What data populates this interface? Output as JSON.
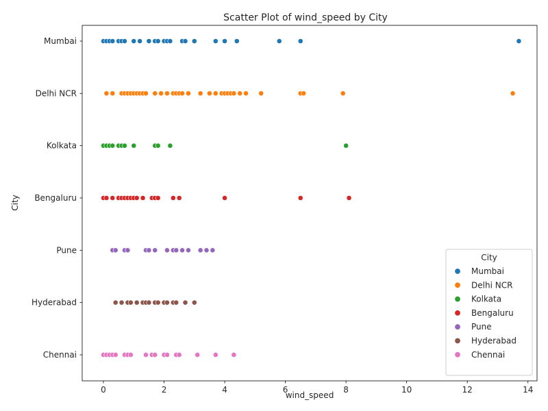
{
  "chart_data": {
    "type": "scatter",
    "title": "Scatter Plot of wind_speed by City",
    "xlabel": "wind_speed",
    "ylabel": "City",
    "xlim": [
      -0.7,
      14.3
    ],
    "x_ticks": [
      0,
      2,
      4,
      6,
      8,
      10,
      12,
      14
    ],
    "categories": [
      "Mumbai",
      "Delhi NCR",
      "Kolkata",
      "Bengaluru",
      "Pune",
      "Hyderabad",
      "Chennai"
    ],
    "legend": {
      "title": "City",
      "position": "bottom-right"
    },
    "grid": false,
    "series": [
      {
        "name": "Mumbai",
        "color": "#1f77b4",
        "x": [
          0.0,
          0.1,
          0.2,
          0.3,
          0.5,
          0.6,
          0.7,
          1.0,
          1.2,
          1.5,
          1.7,
          1.8,
          2.0,
          2.1,
          2.2,
          2.6,
          2.7,
          3.0,
          3.7,
          4.0,
          4.4,
          5.8,
          6.5,
          13.7
        ]
      },
      {
        "name": "Delhi NCR",
        "color": "#ff7f0e",
        "x": [
          0.1,
          0.3,
          0.6,
          0.7,
          0.8,
          0.9,
          1.0,
          1.1,
          1.2,
          1.3,
          1.4,
          1.7,
          1.9,
          2.1,
          2.3,
          2.4,
          2.5,
          2.6,
          2.8,
          3.2,
          3.5,
          3.7,
          3.9,
          4.0,
          4.1,
          4.2,
          4.3,
          4.5,
          4.7,
          5.2,
          6.5,
          6.6,
          7.9,
          13.5
        ]
      },
      {
        "name": "Kolkata",
        "color": "#2ca02c",
        "x": [
          0.0,
          0.1,
          0.2,
          0.3,
          0.5,
          0.6,
          0.7,
          1.0,
          1.7,
          1.8,
          2.2,
          8.0
        ]
      },
      {
        "name": "Bengaluru",
        "color": "#d62728",
        "x": [
          0.0,
          0.1,
          0.3,
          0.5,
          0.6,
          0.7,
          0.8,
          0.9,
          1.0,
          1.1,
          1.3,
          1.6,
          1.7,
          1.8,
          2.3,
          2.5,
          4.0,
          6.5,
          8.1
        ]
      },
      {
        "name": "Pune",
        "color": "#9467bd",
        "x": [
          0.3,
          0.4,
          0.7,
          0.8,
          1.4,
          1.5,
          1.7,
          2.1,
          2.3,
          2.4,
          2.6,
          2.8,
          3.2,
          3.4,
          3.6
        ]
      },
      {
        "name": "Hyderabad",
        "color": "#8c564b",
        "x": [
          0.4,
          0.6,
          0.8,
          0.9,
          1.1,
          1.3,
          1.4,
          1.5,
          1.7,
          1.8,
          2.0,
          2.1,
          2.3,
          2.4,
          2.7,
          3.0
        ]
      },
      {
        "name": "Chennai",
        "color": "#e377c2",
        "x": [
          0.0,
          0.1,
          0.2,
          0.3,
          0.4,
          0.7,
          0.8,
          0.9,
          1.4,
          1.6,
          1.7,
          2.0,
          2.1,
          2.4,
          2.5,
          3.1,
          3.7,
          4.3
        ]
      }
    ]
  }
}
